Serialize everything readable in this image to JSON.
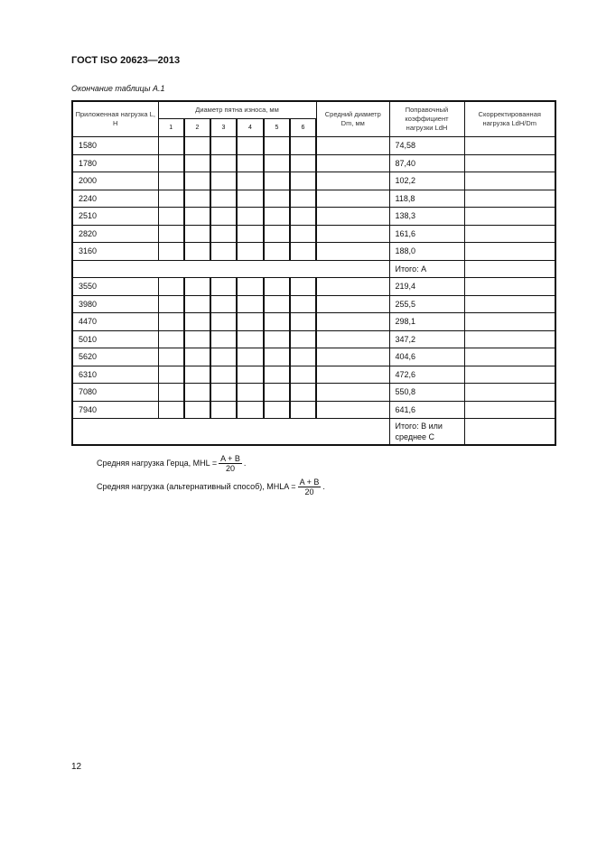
{
  "header": "ГОСТ ISO 20623—2013",
  "caption": "Окончание таблицы А.1",
  "table": {
    "col_load": "Приложенная нагрузка L, Н",
    "col_diam": "Диаметр пятна износа, мм",
    "diam_nums": [
      "1",
      "2",
      "3",
      "4",
      "5",
      "6"
    ],
    "col_avg": "Средний диаметр Dm, мм",
    "col_coef": "Поправочный коэффициент нагрузки LdH",
    "col_corr": "Скорректированная нагрузка LdH/Dm",
    "rows1": [
      [
        "1580",
        "74,58"
      ],
      [
        "1780",
        "87,40"
      ],
      [
        "2000",
        "102,2"
      ],
      [
        "2240",
        "118,8"
      ],
      [
        "2510",
        "138,3"
      ],
      [
        "2820",
        "161,6"
      ],
      [
        "3160",
        "188,0"
      ]
    ],
    "total_a": "Итого: А",
    "rows2": [
      [
        "3550",
        "219,4"
      ],
      [
        "3980",
        "255,5"
      ],
      [
        "4470",
        "298,1"
      ],
      [
        "5010",
        "347,2"
      ],
      [
        "5620",
        "404,6"
      ],
      [
        "6310",
        "472,6"
      ],
      [
        "7080",
        "550,8"
      ],
      [
        "7940",
        "641,6"
      ]
    ],
    "total_b": "Итого: В или среднее С"
  },
  "formulas": {
    "mhl_label": "Средняя нагрузка Герца, MHL =",
    "mhla_label": "Средняя нагрузка (альтернативный способ), MHLA =",
    "numerator": "A + B",
    "denominator": "20",
    "end": "."
  },
  "page_number": "12"
}
